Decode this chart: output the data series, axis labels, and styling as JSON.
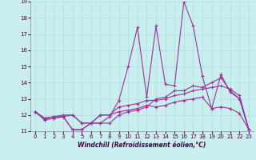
{
  "xlabel": "Windchill (Refroidissement éolien,°C)",
  "background_color": "#c8eeee",
  "line_color": "#993399",
  "grid_color": "#aadddd",
  "xlim": [
    -0.5,
    23.5
  ],
  "ylim": [
    11,
    19
  ],
  "xticks": [
    0,
    1,
    2,
    3,
    4,
    5,
    6,
    7,
    8,
    9,
    10,
    11,
    12,
    13,
    14,
    15,
    16,
    17,
    18,
    19,
    20,
    21,
    22,
    23
  ],
  "yticks": [
    11,
    12,
    13,
    14,
    15,
    16,
    17,
    18,
    19
  ],
  "series": [
    [
      12.2,
      11.8,
      11.9,
      12.0,
      12.0,
      11.5,
      11.5,
      12.0,
      12.0,
      12.5,
      12.6,
      12.7,
      12.9,
      12.9,
      13.0,
      13.2,
      13.3,
      13.5,
      13.6,
      13.7,
      13.8,
      13.6,
      13.2,
      11.1
    ],
    [
      12.2,
      11.8,
      11.9,
      11.9,
      11.1,
      11.1,
      11.5,
      11.5,
      11.9,
      12.9,
      15.0,
      17.4,
      13.1,
      17.5,
      13.9,
      13.8,
      19.0,
      17.5,
      14.4,
      12.4,
      14.5,
      13.4,
      13.0,
      11.1
    ],
    [
      12.2,
      11.7,
      11.8,
      11.9,
      11.1,
      11.1,
      11.5,
      11.5,
      11.5,
      12.0,
      12.2,
      12.3,
      12.5,
      13.0,
      13.1,
      13.5,
      13.5,
      13.8,
      13.7,
      14.0,
      14.3,
      13.5,
      13.0,
      11.1
    ],
    [
      12.2,
      11.7,
      11.8,
      11.9,
      12.0,
      11.5,
      11.5,
      12.0,
      12.0,
      12.2,
      12.3,
      12.4,
      12.6,
      12.5,
      12.6,
      12.8,
      12.9,
      13.0,
      13.1,
      12.4,
      12.5,
      12.4,
      12.1,
      11.1
    ]
  ]
}
